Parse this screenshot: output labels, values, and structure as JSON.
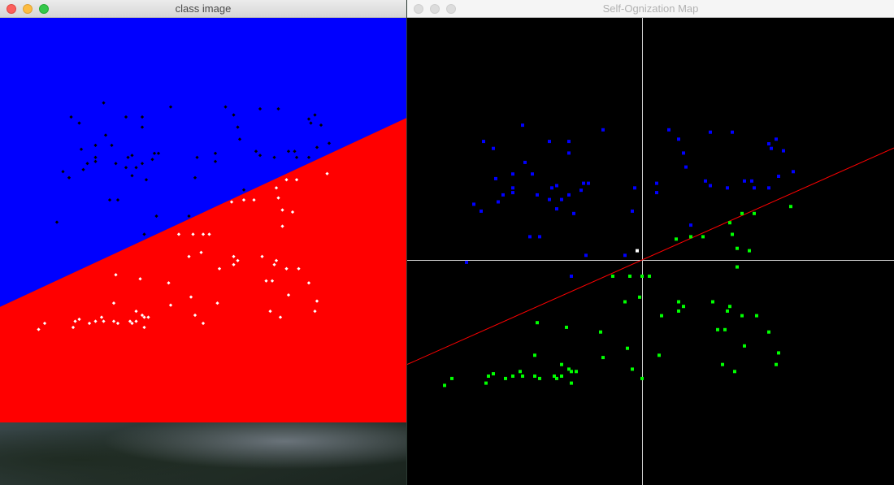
{
  "windows": {
    "class_image": {
      "title": "class image",
      "state": "active",
      "colors": {
        "upper_region": "#0000ff",
        "lower_region": "#ff0000",
        "point_above": "#000000",
        "point_below": "#ffffff"
      }
    },
    "som": {
      "title": "Self-Ognization Map",
      "state": "inactive",
      "colors": {
        "background": "#000000",
        "axes": "#d0d0d0",
        "boundary": "#ff0000",
        "class_a": "#0000ff",
        "class_b": "#00ff00",
        "neuron": "#ffffff"
      }
    }
  },
  "scene": {
    "boundary": {
      "x_left": -1,
      "y_left": -0.4286,
      "x_right": 1,
      "y_right": 0.5048
    },
    "neuron": {
      "x": -0.02,
      "y": 0.04
    },
    "points": [
      [
        -0.49,
        0.58
      ],
      [
        -0.16,
        0.56
      ],
      [
        0.11,
        0.56
      ],
      [
        0.28,
        0.55
      ],
      [
        0.37,
        0.55
      ],
      [
        0.52,
        0.5
      ],
      [
        0.53,
        0.48
      ],
      [
        -0.38,
        0.51
      ],
      [
        0.15,
        0.52
      ],
      [
        -0.3,
        0.51
      ],
      [
        -0.65,
        0.51
      ],
      [
        -0.61,
        0.48
      ],
      [
        -0.3,
        0.46
      ],
      [
        0.17,
        0.46
      ],
      [
        -0.48,
        0.42
      ],
      [
        0.55,
        0.52
      ],
      [
        0.58,
        0.47
      ],
      [
        -0.53,
        0.37
      ],
      [
        0.18,
        0.4
      ],
      [
        -0.45,
        0.37
      ],
      [
        -0.6,
        0.35
      ],
      [
        -0.22,
        0.33
      ],
      [
        0.42,
        0.34
      ],
      [
        0.56,
        0.36
      ],
      [
        -0.35,
        0.32
      ],
      [
        0.62,
        0.38
      ],
      [
        0.52,
        0.31
      ],
      [
        -0.25,
        0.3
      ],
      [
        -0.53,
        0.29
      ],
      [
        0.06,
        0.29
      ],
      [
        -0.3,
        0.28
      ],
      [
        -0.04,
        0.21
      ],
      [
        0.61,
        0.23
      ],
      [
        0.41,
        0.2
      ],
      [
        -0.33,
        0.26
      ],
      [
        -0.43,
        0.28
      ],
      [
        -0.69,
        0.24
      ],
      [
        -0.57,
        0.28
      ],
      [
        -0.38,
        0.26
      ],
      [
        -0.35,
        0.22
      ],
      [
        0.46,
        0.2
      ],
      [
        -0.28,
        0.2
      ],
      [
        -0.59,
        0.25
      ],
      [
        -0.66,
        0.21
      ],
      [
        -0.37,
        0.31
      ],
      [
        -0.03,
        0.31
      ],
      [
        0.35,
        0.31
      ],
      [
        0.46,
        0.31
      ],
      [
        -0.24,
        0.33
      ],
      [
        0.28,
        0.32
      ],
      [
        0.45,
        0.34
      ],
      [
        -0.53,
        0.31
      ],
      [
        0.26,
        0.34
      ],
      [
        0.06,
        0.33
      ],
      [
        -0.42,
        0.1
      ],
      [
        0.2,
        0.15
      ],
      [
        0.14,
        0.09
      ],
      [
        0.2,
        0.1
      ],
      [
        -0.46,
        0.1
      ],
      [
        0.36,
        0.16
      ],
      [
        0.44,
        0.04
      ],
      [
        0.39,
        0.05
      ],
      [
        0.37,
        0.11
      ],
      [
        -0.23,
        0.02
      ],
      [
        -0.07,
        0.02
      ],
      [
        0.39,
        -0.03
      ],
      [
        -0.72,
        -0.01
      ],
      [
        -0.29,
        -0.07
      ],
      [
        -0.12,
        -0.07
      ],
      [
        -0.05,
        -0.07
      ],
      [
        0.0,
        -0.07
      ],
      [
        0.25,
        0.1
      ],
      [
        0.03,
        -0.07
      ],
      [
        -0.07,
        -0.18
      ],
      [
        0.15,
        -0.18
      ],
      [
        0.17,
        -0.2
      ],
      [
        0.29,
        -0.18
      ],
      [
        0.15,
        -0.22
      ],
      [
        0.36,
        -0.2
      ],
      [
        0.41,
        -0.24
      ],
      [
        0.47,
        -0.24
      ],
      [
        -0.31,
        -0.29
      ],
      [
        0.35,
        -0.22
      ],
      [
        -0.43,
        -0.27
      ],
      [
        -0.01,
        -0.16
      ],
      [
        0.08,
        -0.24
      ],
      [
        -0.17,
        -0.31
      ],
      [
        -0.06,
        -0.38
      ],
      [
        0.31,
        -0.3
      ],
      [
        0.34,
        -0.3
      ],
      [
        0.42,
        -0.37
      ],
      [
        0.52,
        -0.31
      ],
      [
        0.33,
        -0.45
      ],
      [
        -0.44,
        -0.41
      ],
      [
        -0.16,
        -0.42
      ],
      [
        -0.33,
        -0.45
      ],
      [
        -0.27,
        -0.48
      ],
      [
        -0.04,
        -0.47
      ],
      [
        0.07,
        -0.41
      ],
      [
        -0.53,
        -0.5
      ],
      [
        -0.3,
        -0.47
      ],
      [
        0.55,
        -0.45
      ],
      [
        -0.44,
        -0.5
      ],
      [
        -0.49,
        -0.5
      ],
      [
        0.38,
        -0.48
      ],
      [
        -0.5,
        -0.48
      ],
      [
        0.56,
        -0.4
      ],
      [
        0.0,
        -0.51
      ],
      [
        -0.29,
        -0.53
      ],
      [
        -0.81,
        -0.54
      ],
      [
        -0.64,
        -0.53
      ],
      [
        -0.56,
        -0.51
      ],
      [
        -0.33,
        -0.5
      ],
      [
        -0.63,
        -0.5
      ],
      [
        -0.36,
        -0.5
      ],
      [
        -0.35,
        -0.51
      ],
      [
        -0.42,
        -0.51
      ],
      [
        -0.29,
        -0.48
      ],
      [
        -0.61,
        -0.49
      ],
      [
        -0.78,
        -0.51
      ]
    ]
  }
}
